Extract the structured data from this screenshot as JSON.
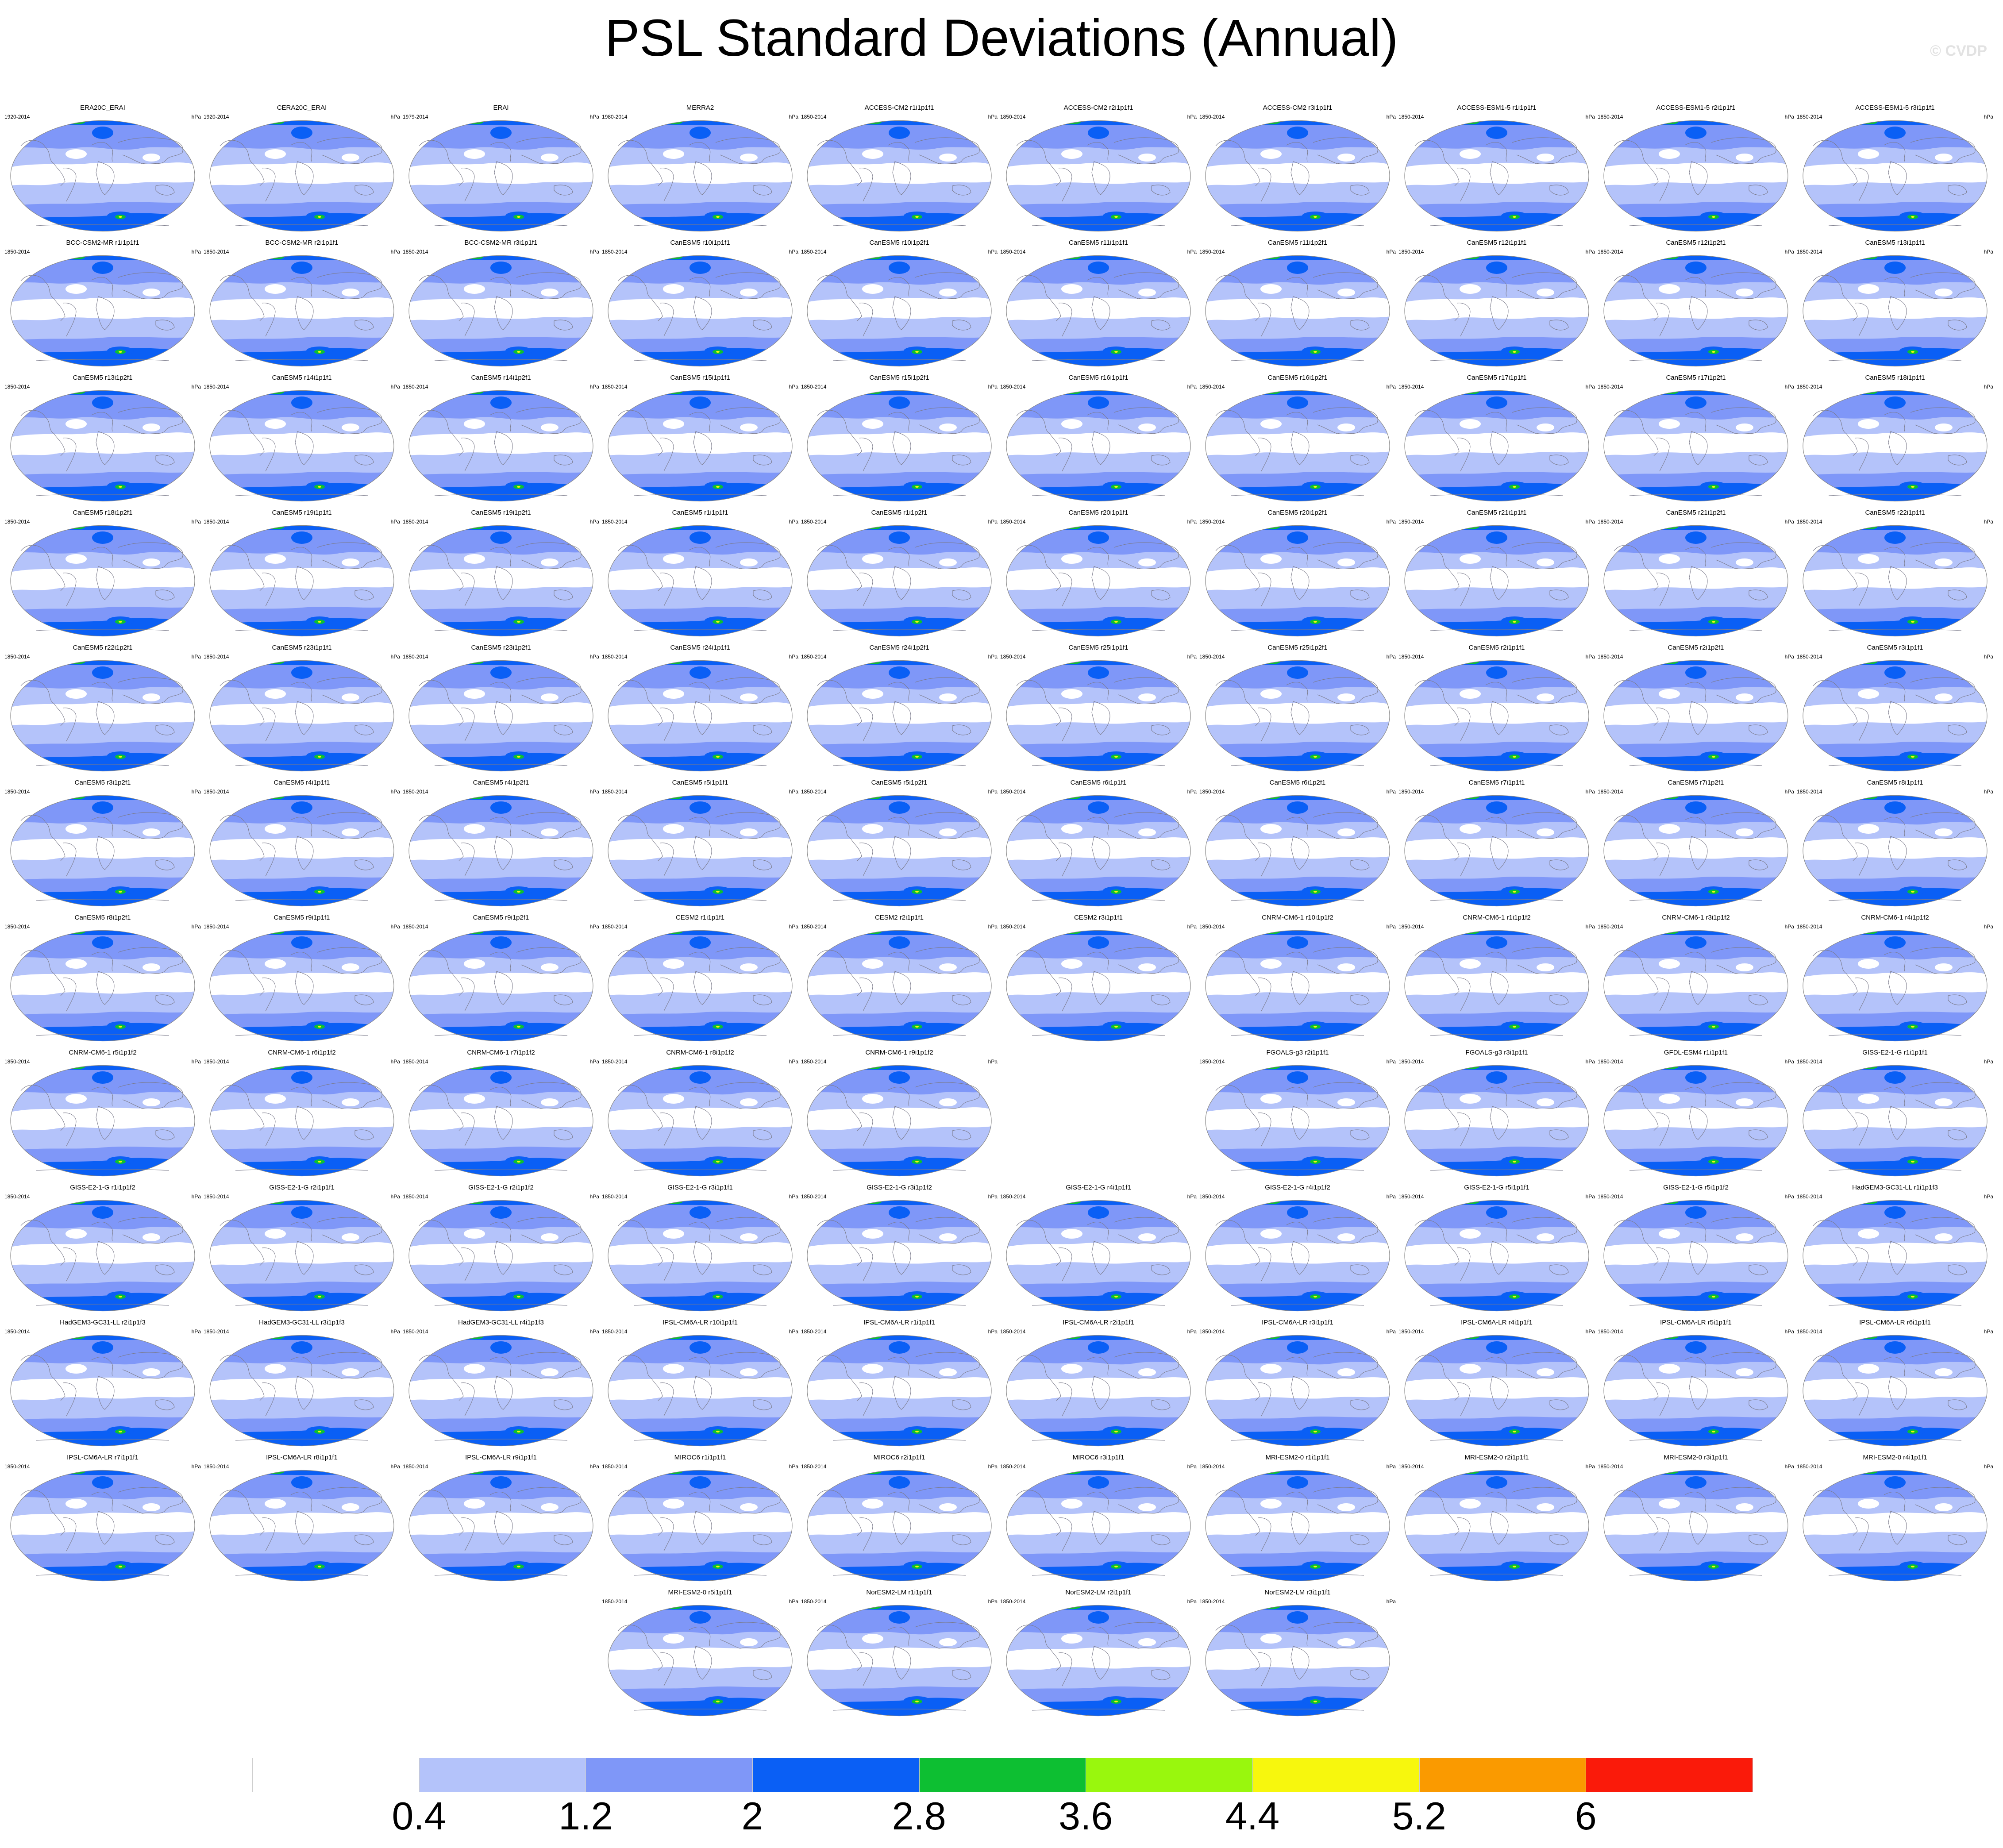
{
  "title": "PSL Standard Deviations (Annual)",
  "watermark": "© CVDP",
  "units": "hPa",
  "colorbar": {
    "labels": [
      "0.4",
      "1.2",
      "2",
      "2.8",
      "3.6",
      "4.4",
      "5.2",
      "6"
    ],
    "colors": [
      "#ffffff",
      "#b4c3fa",
      "#7f97f8",
      "#0a5ff5",
      "#0dbf32",
      "#99f70d",
      "#f7f70d",
      "#fa9a00",
      "#fa1a0a"
    ]
  },
  "map_colors": {
    "ocean": "#ffffff",
    "light": "#b4c3fa",
    "mid": "#7f97f8",
    "strong": "#0a5ff5",
    "green": "#0dbf32",
    "yellow": "#f7f70d",
    "coast": "#7a7a8a",
    "border": "#888888"
  },
  "panels": [
    {
      "name": "ERA20C_ERAI",
      "years": "1920-2014",
      "row": 0,
      "col": 0
    },
    {
      "name": "CERA20C_ERAI",
      "years": "1920-2014",
      "row": 0,
      "col": 1
    },
    {
      "name": "ERAI",
      "years": "1979-2014",
      "row": 0,
      "col": 2
    },
    {
      "name": "MERRA2",
      "years": "1980-2014",
      "row": 0,
      "col": 3
    },
    {
      "name": "ACCESS-CM2 r1i1p1f1",
      "years": "1850-2014",
      "row": 0,
      "col": 4
    },
    {
      "name": "ACCESS-CM2 r2i1p1f1",
      "years": "1850-2014",
      "row": 0,
      "col": 5
    },
    {
      "name": "ACCESS-CM2 r3i1p1f1",
      "years": "1850-2014",
      "row": 0,
      "col": 6
    },
    {
      "name": "ACCESS-ESM1-5 r1i1p1f1",
      "years": "1850-2014",
      "row": 0,
      "col": 7
    },
    {
      "name": "ACCESS-ESM1-5 r2i1p1f1",
      "years": "1850-2014",
      "row": 0,
      "col": 8
    },
    {
      "name": "ACCESS-ESM1-5 r3i1p1f1",
      "years": "1850-2014",
      "row": 0,
      "col": 9
    },
    {
      "name": "BCC-CSM2-MR r1i1p1f1",
      "years": "1850-2014",
      "row": 1,
      "col": 0
    },
    {
      "name": "BCC-CSM2-MR r2i1p1f1",
      "years": "1850-2014",
      "row": 1,
      "col": 1
    },
    {
      "name": "BCC-CSM2-MR r3i1p1f1",
      "years": "1850-2014",
      "row": 1,
      "col": 2
    },
    {
      "name": "CanESM5 r10i1p1f1",
      "years": "1850-2014",
      "row": 1,
      "col": 3
    },
    {
      "name": "CanESM5 r10i1p2f1",
      "years": "1850-2014",
      "row": 1,
      "col": 4
    },
    {
      "name": "CanESM5 r11i1p1f1",
      "years": "1850-2014",
      "row": 1,
      "col": 5
    },
    {
      "name": "CanESM5 r11i1p2f1",
      "years": "1850-2014",
      "row": 1,
      "col": 6
    },
    {
      "name": "CanESM5 r12i1p1f1",
      "years": "1850-2014",
      "row": 1,
      "col": 7
    },
    {
      "name": "CanESM5 r12i1p2f1",
      "years": "1850-2014",
      "row": 1,
      "col": 8
    },
    {
      "name": "CanESM5 r13i1p1f1",
      "years": "1850-2014",
      "row": 1,
      "col": 9
    },
    {
      "name": "CanESM5 r13i1p2f1",
      "years": "1850-2014",
      "row": 2,
      "col": 0
    },
    {
      "name": "CanESM5 r14i1p1f1",
      "years": "1850-2014",
      "row": 2,
      "col": 1
    },
    {
      "name": "CanESM5 r14i1p2f1",
      "years": "1850-2014",
      "row": 2,
      "col": 2
    },
    {
      "name": "CanESM5 r15i1p1f1",
      "years": "1850-2014",
      "row": 2,
      "col": 3
    },
    {
      "name": "CanESM5 r15i1p2f1",
      "years": "1850-2014",
      "row": 2,
      "col": 4
    },
    {
      "name": "CanESM5 r16i1p1f1",
      "years": "1850-2014",
      "row": 2,
      "col": 5
    },
    {
      "name": "CanESM5 r16i1p2f1",
      "years": "1850-2014",
      "row": 2,
      "col": 6
    },
    {
      "name": "CanESM5 r17i1p1f1",
      "years": "1850-2014",
      "row": 2,
      "col": 7
    },
    {
      "name": "CanESM5 r17i1p2f1",
      "years": "1850-2014",
      "row": 2,
      "col": 8
    },
    {
      "name": "CanESM5 r18i1p1f1",
      "years": "1850-2014",
      "row": 2,
      "col": 9
    },
    {
      "name": "CanESM5 r18i1p2f1",
      "years": "1850-2014",
      "row": 3,
      "col": 0
    },
    {
      "name": "CanESM5 r19i1p1f1",
      "years": "1850-2014",
      "row": 3,
      "col": 1
    },
    {
      "name": "CanESM5 r19i1p2f1",
      "years": "1850-2014",
      "row": 3,
      "col": 2
    },
    {
      "name": "CanESM5 r1i1p1f1",
      "years": "1850-2014",
      "row": 3,
      "col": 3
    },
    {
      "name": "CanESM5 r1i1p2f1",
      "years": "1850-2014",
      "row": 3,
      "col": 4
    },
    {
      "name": "CanESM5 r20i1p1f1",
      "years": "1850-2014",
      "row": 3,
      "col": 5
    },
    {
      "name": "CanESM5 r20i1p2f1",
      "years": "1850-2014",
      "row": 3,
      "col": 6
    },
    {
      "name": "CanESM5 r21i1p1f1",
      "years": "1850-2014",
      "row": 3,
      "col": 7
    },
    {
      "name": "CanESM5 r21i1p2f1",
      "years": "1850-2014",
      "row": 3,
      "col": 8
    },
    {
      "name": "CanESM5 r22i1p1f1",
      "years": "1850-2014",
      "row": 3,
      "col": 9
    },
    {
      "name": "CanESM5 r22i1p2f1",
      "years": "1850-2014",
      "row": 4,
      "col": 0
    },
    {
      "name": "CanESM5 r23i1p1f1",
      "years": "1850-2014",
      "row": 4,
      "col": 1
    },
    {
      "name": "CanESM5 r23i1p2f1",
      "years": "1850-2014",
      "row": 4,
      "col": 2
    },
    {
      "name": "CanESM5 r24i1p1f1",
      "years": "1850-2014",
      "row": 4,
      "col": 3
    },
    {
      "name": "CanESM5 r24i1p2f1",
      "years": "1850-2014",
      "row": 4,
      "col": 4
    },
    {
      "name": "CanESM5 r25i1p1f1",
      "years": "1850-2014",
      "row": 4,
      "col": 5
    },
    {
      "name": "CanESM5 r25i1p2f1",
      "years": "1850-2014",
      "row": 4,
      "col": 6
    },
    {
      "name": "CanESM5 r2i1p1f1",
      "years": "1850-2014",
      "row": 4,
      "col": 7
    },
    {
      "name": "CanESM5 r2i1p2f1",
      "years": "1850-2014",
      "row": 4,
      "col": 8
    },
    {
      "name": "CanESM5 r3i1p1f1",
      "years": "1850-2014",
      "row": 4,
      "col": 9
    },
    {
      "name": "CanESM5 r3i1p2f1",
      "years": "1850-2014",
      "row": 5,
      "col": 0
    },
    {
      "name": "CanESM5 r4i1p1f1",
      "years": "1850-2014",
      "row": 5,
      "col": 1
    },
    {
      "name": "CanESM5 r4i1p2f1",
      "years": "1850-2014",
      "row": 5,
      "col": 2
    },
    {
      "name": "CanESM5 r5i1p1f1",
      "years": "1850-2014",
      "row": 5,
      "col": 3
    },
    {
      "name": "CanESM5 r5i1p2f1",
      "years": "1850-2014",
      "row": 5,
      "col": 4
    },
    {
      "name": "CanESM5 r6i1p1f1",
      "years": "1850-2014",
      "row": 5,
      "col": 5
    },
    {
      "name": "CanESM5 r6i1p2f1",
      "years": "1850-2014",
      "row": 5,
      "col": 6
    },
    {
      "name": "CanESM5 r7i1p1f1",
      "years": "1850-2014",
      "row": 5,
      "col": 7
    },
    {
      "name": "CanESM5 r7i1p2f1",
      "years": "1850-2014",
      "row": 5,
      "col": 8
    },
    {
      "name": "CanESM5 r8i1p1f1",
      "years": "1850-2014",
      "row": 5,
      "col": 9
    },
    {
      "name": "CanESM5 r8i1p2f1",
      "years": "1850-2014",
      "row": 6,
      "col": 0
    },
    {
      "name": "CanESM5 r9i1p1f1",
      "years": "1850-2014",
      "row": 6,
      "col": 1
    },
    {
      "name": "CanESM5 r9i1p2f1",
      "years": "1850-2014",
      "row": 6,
      "col": 2
    },
    {
      "name": "CESM2 r1i1p1f1",
      "years": "1850-2014",
      "row": 6,
      "col": 3
    },
    {
      "name": "CESM2 r2i1p1f1",
      "years": "1850-2014",
      "row": 6,
      "col": 4
    },
    {
      "name": "CESM2 r3i1p1f1",
      "years": "1850-2014",
      "row": 6,
      "col": 5
    },
    {
      "name": "CNRM-CM6-1 r10i1p1f2",
      "years": "1850-2014",
      "row": 6,
      "col": 6
    },
    {
      "name": "CNRM-CM6-1 r1i1p1f2",
      "years": "1850-2014",
      "row": 6,
      "col": 7
    },
    {
      "name": "CNRM-CM6-1 r3i1p1f2",
      "years": "1850-2014",
      "row": 6,
      "col": 8
    },
    {
      "name": "CNRM-CM6-1 r4i1p1f2",
      "years": "1850-2014",
      "row": 6,
      "col": 9
    },
    {
      "name": "CNRM-CM6-1 r5i1p1f2",
      "years": "1850-2014",
      "row": 7,
      "col": 0
    },
    {
      "name": "CNRM-CM6-1 r6i1p1f2",
      "years": "1850-2014",
      "row": 7,
      "col": 1
    },
    {
      "name": "CNRM-CM6-1 r7i1p1f2",
      "years": "1850-2014",
      "row": 7,
      "col": 2
    },
    {
      "name": "CNRM-CM6-1 r8i1p1f2",
      "years": "1850-2014",
      "row": 7,
      "col": 3
    },
    {
      "name": "CNRM-CM6-1 r9i1p1f2",
      "years": "1850-2014",
      "row": 7,
      "col": 4
    },
    {
      "name": "FGOALS-g3 r2i1p1f1",
      "years": "1850-2014",
      "row": 7,
      "col": 6
    },
    {
      "name": "FGOALS-g3 r3i1p1f1",
      "years": "1850-2014",
      "row": 7,
      "col": 7
    },
    {
      "name": "GFDL-ESM4 r1i1p1f1",
      "years": "1850-2014",
      "row": 7,
      "col": 8
    },
    {
      "name": "GISS-E2-1-G r1i1p1f1",
      "years": "1850-2014",
      "row": 7,
      "col": 9
    },
    {
      "name": "GISS-E2-1-G r1i1p1f2",
      "years": "1850-2014",
      "row": 8,
      "col": 0
    },
    {
      "name": "GISS-E2-1-G r2i1p1f1",
      "years": "1850-2014",
      "row": 8,
      "col": 1
    },
    {
      "name": "GISS-E2-1-G r2i1p1f2",
      "years": "1850-2014",
      "row": 8,
      "col": 2
    },
    {
      "name": "GISS-E2-1-G r3i1p1f1",
      "years": "1850-2014",
      "row": 8,
      "col": 3
    },
    {
      "name": "GISS-E2-1-G r3i1p1f2",
      "years": "1850-2014",
      "row": 8,
      "col": 4
    },
    {
      "name": "GISS-E2-1-G r4i1p1f1",
      "years": "1850-2014",
      "row": 8,
      "col": 5
    },
    {
      "name": "GISS-E2-1-G r4i1p1f2",
      "years": "1850-2014",
      "row": 8,
      "col": 6
    },
    {
      "name": "GISS-E2-1-G r5i1p1f1",
      "years": "1850-2014",
      "row": 8,
      "col": 7
    },
    {
      "name": "GISS-E2-1-G r5i1p1f2",
      "years": "1850-2014",
      "row": 8,
      "col": 8
    },
    {
      "name": "HadGEM3-GC31-LL r1i1p1f3",
      "years": "1850-2014",
      "row": 8,
      "col": 9
    },
    {
      "name": "HadGEM3-GC31-LL r2i1p1f3",
      "years": "1850-2014",
      "row": 9,
      "col": 0
    },
    {
      "name": "HadGEM3-GC31-LL r3i1p1f3",
      "years": "1850-2014",
      "row": 9,
      "col": 1
    },
    {
      "name": "HadGEM3-GC31-LL r4i1p1f3",
      "years": "1850-2014",
      "row": 9,
      "col": 2
    },
    {
      "name": "IPSL-CM6A-LR r10i1p1f1",
      "years": "1850-2014",
      "row": 9,
      "col": 3
    },
    {
      "name": "IPSL-CM6A-LR r1i1p1f1",
      "years": "1850-2014",
      "row": 9,
      "col": 4
    },
    {
      "name": "IPSL-CM6A-LR r2i1p1f1",
      "years": "1850-2014",
      "row": 9,
      "col": 5
    },
    {
      "name": "IPSL-CM6A-LR r3i1p1f1",
      "years": "1850-2014",
      "row": 9,
      "col": 6
    },
    {
      "name": "IPSL-CM6A-LR r4i1p1f1",
      "years": "1850-2014",
      "row": 9,
      "col": 7
    },
    {
      "name": "IPSL-CM6A-LR r5i1p1f1",
      "years": "1850-2014",
      "row": 9,
      "col": 8
    },
    {
      "name": "IPSL-CM6A-LR r6i1p1f1",
      "years": "1850-2014",
      "row": 9,
      "col": 9
    },
    {
      "name": "IPSL-CM6A-LR r7i1p1f1",
      "years": "1850-2014",
      "row": 10,
      "col": 0
    },
    {
      "name": "IPSL-CM6A-LR r8i1p1f1",
      "years": "1850-2014",
      "row": 10,
      "col": 1
    },
    {
      "name": "IPSL-CM6A-LR r9i1p1f1",
      "years": "1850-2014",
      "row": 10,
      "col": 2
    },
    {
      "name": "MIROC6 r1i1p1f1",
      "years": "1850-2014",
      "row": 10,
      "col": 3
    },
    {
      "name": "MIROC6 r2i1p1f1",
      "years": "1850-2014",
      "row": 10,
      "col": 4
    },
    {
      "name": "MIROC6 r3i1p1f1",
      "years": "1850-2014",
      "row": 10,
      "col": 5
    },
    {
      "name": "MRI-ESM2-0 r1i1p1f1",
      "years": "1850-2014",
      "row": 10,
      "col": 6
    },
    {
      "name": "MRI-ESM2-0 r2i1p1f1",
      "years": "1850-2014",
      "row": 10,
      "col": 7
    },
    {
      "name": "MRI-ESM2-0 r3i1p1f1",
      "years": "1850-2014",
      "row": 10,
      "col": 8
    },
    {
      "name": "MRI-ESM2-0 r4i1p1f1",
      "years": "1850-2014",
      "row": 10,
      "col": 9
    },
    {
      "name": "MRI-ESM2-0 r5i1p1f1",
      "years": "1850-2014",
      "row": 11,
      "col": 3
    },
    {
      "name": "NorESM2-LM r1i1p1f1",
      "years": "1850-2014",
      "row": 11,
      "col": 4
    },
    {
      "name": "NorESM2-LM r2i1p1f1",
      "years": "1850-2014",
      "row": 11,
      "col": 5
    },
    {
      "name": "NorESM2-LM r3i1p1f1",
      "years": "1850-2014",
      "row": 11,
      "col": 6
    }
  ]
}
